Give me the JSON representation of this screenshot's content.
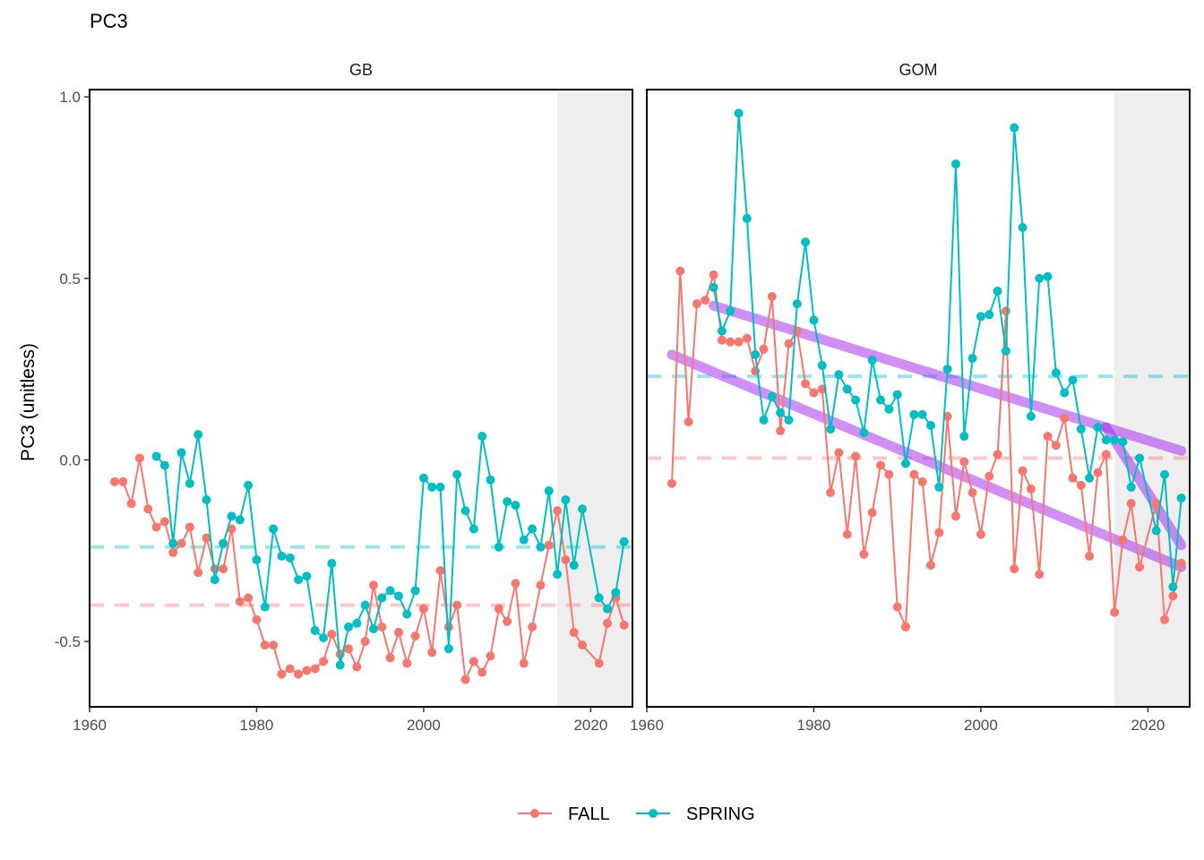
{
  "title": "PC3",
  "ylabel": "PC3 (unitless)",
  "legend": {
    "position": "bottom",
    "entries": [
      {
        "name": "FALL",
        "color": "#F8766D"
      },
      {
        "name": "SPRING",
        "color": "#00BFC4"
      }
    ]
  },
  "chart_data": {
    "type": "line",
    "title": "PC3",
    "ylabel": "PC3 (unitless)",
    "xlabel": "",
    "xlim": [
      1960,
      2025
    ],
    "ylim": [
      -0.68,
      1.02
    ],
    "xticks": [
      "1960",
      "1980",
      "2000",
      "2020"
    ],
    "yticks": [
      "-0.5",
      "0.0",
      "0.5",
      "1.0"
    ],
    "grid": false,
    "shaded_period": [
      2016,
      2025
    ],
    "colors": {
      "FALL": "#F8766D",
      "SPRING": "#00BFC4",
      "trend": "#A020F0",
      "shade": "#EEEEEE"
    },
    "panels": [
      {
        "name": "GB",
        "series": [
          {
            "name": "FALL",
            "mean": -0.4,
            "x": [
              1963,
              1964,
              1965,
              1966,
              1967,
              1968,
              1969,
              1970,
              1971,
              1972,
              1973,
              1974,
              1975,
              1976,
              1977,
              1978,
              1979,
              1980,
              1981,
              1982,
              1983,
              1984,
              1985,
              1986,
              1987,
              1988,
              1989,
              1990,
              1991,
              1992,
              1993,
              1994,
              1995,
              1996,
              1997,
              1998,
              1999,
              2000,
              2001,
              2002,
              2003,
              2004,
              2005,
              2006,
              2007,
              2008,
              2009,
              2010,
              2011,
              2012,
              2013,
              2014,
              2015,
              2016,
              2017,
              2018,
              2019,
              2021,
              2022,
              2023,
              2024
            ],
            "y": [
              -0.06,
              -0.06,
              -0.12,
              0.005,
              -0.135,
              -0.185,
              -0.17,
              -0.255,
              -0.23,
              -0.185,
              -0.31,
              -0.215,
              -0.3,
              -0.3,
              -0.19,
              -0.39,
              -0.38,
              -0.44,
              -0.51,
              -0.51,
              -0.59,
              -0.575,
              -0.59,
              -0.58,
              -0.575,
              -0.555,
              -0.48,
              -0.535,
              -0.52,
              -0.57,
              -0.5,
              -0.345,
              -0.46,
              -0.545,
              -0.475,
              -0.56,
              -0.485,
              -0.41,
              -0.53,
              -0.305,
              -0.46,
              -0.4,
              -0.605,
              -0.555,
              -0.585,
              -0.54,
              -0.41,
              -0.445,
              -0.34,
              -0.56,
              -0.46,
              -0.345,
              -0.235,
              -0.14,
              -0.275,
              -0.475,
              -0.51,
              -0.56,
              -0.45,
              -0.38,
              -0.455
            ]
          },
          {
            "name": "SPRING",
            "mean": -0.24,
            "x": [
              1968,
              1969,
              1970,
              1971,
              1972,
              1973,
              1974,
              1975,
              1976,
              1977,
              1978,
              1979,
              1980,
              1981,
              1982,
              1983,
              1984,
              1985,
              1986,
              1987,
              1988,
              1989,
              1990,
              1991,
              1992,
              1993,
              1994,
              1995,
              1996,
              1997,
              1998,
              1999,
              2000,
              2001,
              2002,
              2003,
              2004,
              2005,
              2006,
              2007,
              2008,
              2009,
              2010,
              2011,
              2012,
              2013,
              2014,
              2015,
              2016,
              2017,
              2018,
              2019,
              2021,
              2022,
              2023,
              2024
            ],
            "y": [
              0.01,
              -0.015,
              -0.23,
              0.02,
              -0.065,
              0.07,
              -0.11,
              -0.33,
              -0.23,
              -0.155,
              -0.165,
              -0.07,
              -0.275,
              -0.405,
              -0.19,
              -0.265,
              -0.27,
              -0.33,
              -0.32,
              -0.47,
              -0.49,
              -0.285,
              -0.565,
              -0.46,
              -0.45,
              -0.4,
              -0.465,
              -0.38,
              -0.36,
              -0.375,
              -0.425,
              -0.36,
              -0.05,
              -0.075,
              -0.075,
              -0.52,
              -0.04,
              -0.14,
              -0.19,
              0.065,
              -0.055,
              -0.24,
              -0.115,
              -0.125,
              -0.22,
              -0.19,
              -0.24,
              -0.085,
              -0.315,
              -0.11,
              -0.29,
              -0.135,
              -0.38,
              -0.41,
              -0.365,
              -0.225
            ]
          }
        ],
        "trends": []
      },
      {
        "name": "GOM",
        "series": [
          {
            "name": "FALL",
            "mean": 0.005,
            "x": [
              1963,
              1964,
              1965,
              1966,
              1967,
              1968,
              1969,
              1970,
              1971,
              1972,
              1973,
              1974,
              1975,
              1976,
              1977,
              1978,
              1979,
              1980,
              1981,
              1982,
              1983,
              1984,
              1985,
              1986,
              1987,
              1988,
              1989,
              1990,
              1991,
              1992,
              1993,
              1994,
              1995,
              1996,
              1997,
              1998,
              1999,
              2000,
              2001,
              2002,
              2003,
              2004,
              2005,
              2006,
              2007,
              2008,
              2009,
              2010,
              2011,
              2012,
              2013,
              2014,
              2015,
              2016,
              2017,
              2018,
              2019,
              2021,
              2022,
              2023,
              2024
            ],
            "y": [
              -0.065,
              0.52,
              0.105,
              0.43,
              0.44,
              0.51,
              0.33,
              0.325,
              0.325,
              0.335,
              0.245,
              0.305,
              0.45,
              0.08,
              0.32,
              0.355,
              0.21,
              0.185,
              0.195,
              -0.09,
              0.02,
              -0.205,
              0.01,
              -0.26,
              -0.145,
              -0.015,
              -0.04,
              -0.405,
              -0.46,
              -0.04,
              -0.06,
              -0.29,
              -0.2,
              0.12,
              -0.155,
              -0.005,
              -0.09,
              -0.205,
              -0.045,
              0.015,
              0.41,
              -0.3,
              -0.03,
              -0.08,
              -0.315,
              0.065,
              0.04,
              0.115,
              -0.05,
              -0.07,
              -0.265,
              -0.035,
              0.015,
              -0.42,
              -0.22,
              -0.12,
              -0.295,
              -0.12,
              -0.44,
              -0.375,
              -0.285
            ]
          },
          {
            "name": "SPRING",
            "mean": 0.23,
            "x": [
              1968,
              1969,
              1970,
              1971,
              1972,
              1973,
              1974,
              1975,
              1976,
              1977,
              1978,
              1979,
              1980,
              1981,
              1982,
              1983,
              1984,
              1985,
              1986,
              1987,
              1988,
              1989,
              1990,
              1991,
              1992,
              1993,
              1994,
              1995,
              1996,
              1997,
              1998,
              1999,
              2000,
              2001,
              2002,
              2003,
              2004,
              2005,
              2006,
              2007,
              2008,
              2009,
              2010,
              2011,
              2012,
              2013,
              2014,
              2015,
              2016,
              2017,
              2018,
              2019,
              2021,
              2022,
              2023,
              2024
            ],
            "y": [
              0.475,
              0.355,
              0.41,
              0.955,
              0.665,
              0.29,
              0.11,
              0.175,
              0.13,
              0.11,
              0.43,
              0.6,
              0.385,
              0.26,
              0.085,
              0.235,
              0.195,
              0.165,
              0.075,
              0.275,
              0.165,
              0.14,
              0.18,
              -0.01,
              0.125,
              0.125,
              0.095,
              -0.075,
              0.25,
              0.815,
              0.065,
              0.28,
              0.395,
              0.4,
              0.465,
              0.3,
              0.915,
              0.64,
              0.12,
              0.5,
              0.505,
              0.24,
              0.185,
              0.22,
              0.085,
              -0.05,
              0.09,
              0.055,
              0.055,
              0.05,
              -0.075,
              0.005,
              -0.195,
              -0.04,
              -0.35,
              -0.105
            ]
          }
        ],
        "trends": [
          {
            "x": [
              1968,
              2024
            ],
            "y": [
              0.425,
              0.025
            ]
          },
          {
            "x": [
              1963,
              2024
            ],
            "y": [
              0.29,
              -0.295
            ]
          },
          {
            "x": [
              2015,
              2024
            ],
            "y": [
              0.09,
              -0.235
            ]
          }
        ]
      }
    ]
  }
}
